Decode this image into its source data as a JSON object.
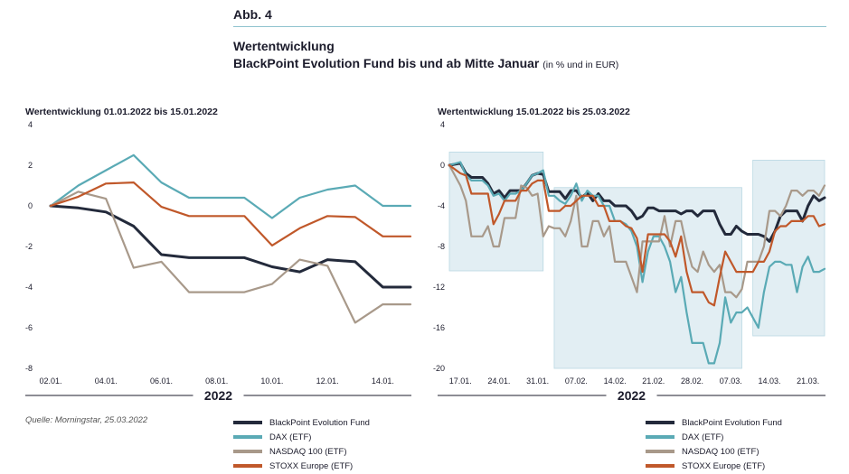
{
  "header": {
    "figure_label": "Abb. 4",
    "title": "Wertentwicklung",
    "subtitle": "BlackPoint Evolution Fund bis und ab Mitte Januar",
    "unit_note": "(in % und in EUR)"
  },
  "source": "Quelle: Morningstar, 25.03.2022",
  "legend_items": [
    {
      "label": "BlackPoint Evolution Fund",
      "color": "#232a3b"
    },
    {
      "label": "DAX (ETF)",
      "color": "#5aaab5"
    },
    {
      "label": "NASDAQ 100 (ETF)",
      "color": "#a8998a"
    },
    {
      "label": "STOXX Europe (ETF)",
      "color": "#c0582a"
    }
  ],
  "chart_data": [
    {
      "type": "line",
      "title": "Wertentwicklung 01.01.2022 bis 15.01.2022",
      "xlabel": "2022",
      "ylabel": "",
      "ylim": [
        -8,
        4
      ],
      "yticks": [
        4,
        2,
        0,
        -2,
        -4,
        -6,
        -8
      ],
      "xlim": [
        0,
        13
      ],
      "x": [
        0,
        1,
        2,
        3,
        4,
        5,
        6,
        7,
        8,
        9,
        10,
        11,
        12,
        13
      ],
      "xtick_positions": [
        0,
        2,
        4,
        6,
        8,
        10,
        12
      ],
      "xtick_labels": [
        "02.01.",
        "04.01.",
        "06.01.",
        "08.01.",
        "10.01.",
        "12.01.",
        "14.01."
      ],
      "series": [
        {
          "name": "BlackPoint Evolution Fund",
          "color": "#232a3b",
          "width": 3,
          "values": [
            0,
            -0.1,
            -0.3,
            -1.0,
            -2.4,
            -2.55,
            -2.55,
            -2.55,
            -3.0,
            -3.25,
            -2.65,
            -2.75,
            -4.0,
            -4.0
          ]
        },
        {
          "name": "DAX (ETF)",
          "color": "#5aaab5",
          "width": 2.2,
          "values": [
            0,
            1.0,
            1.75,
            2.5,
            1.15,
            0.4,
            0.4,
            0.4,
            -0.6,
            0.4,
            0.8,
            1.0,
            0,
            0
          ]
        },
        {
          "name": "NASDAQ 100 (ETF)",
          "color": "#a8998a",
          "width": 2.2,
          "values": [
            0,
            0.7,
            0.35,
            -3.05,
            -2.75,
            -4.25,
            -4.25,
            -4.25,
            -3.85,
            -2.65,
            -2.95,
            -5.75,
            -4.85,
            -4.85
          ]
        },
        {
          "name": "STOXX Europe (ETF)",
          "color": "#c0582a",
          "width": 2.2,
          "values": [
            0,
            0.45,
            1.1,
            1.15,
            -0.05,
            -0.5,
            -0.5,
            -0.5,
            -1.95,
            -1.1,
            -0.5,
            -0.55,
            -1.5,
            -1.5
          ]
        }
      ]
    },
    {
      "type": "line",
      "title": "Wertentwicklung 15.01.2022 bis 25.03.2022",
      "xlabel": "2022",
      "ylabel": "",
      "ylim": [
        -20,
        4
      ],
      "yticks": [
        4,
        0,
        -4,
        -8,
        -12,
        -16,
        -20
      ],
      "xlim": [
        0,
        68
      ],
      "xtick_positions": [
        2,
        9,
        16,
        23,
        30,
        37,
        44,
        51,
        58,
        65
      ],
      "xtick_labels": [
        "17.01.",
        "24.01.",
        "31.01.",
        "07.02.",
        "14.02.",
        "21.02.",
        "28.02.",
        "07.03.",
        "14.03.",
        "21.03."
      ],
      "shaded_ranges": [
        [
          0,
          17
        ],
        [
          19,
          53
        ],
        [
          55,
          68
        ]
      ],
      "series": [
        {
          "name": "BlackPoint Evolution Fund",
          "color": "#232a3b",
          "width": 3,
          "x": [
            0,
            2,
            3,
            4,
            6,
            7,
            8,
            9,
            10,
            11,
            12,
            13,
            14,
            15,
            16,
            17,
            18,
            19,
            20,
            21,
            22,
            23,
            24,
            25,
            26,
            27,
            28,
            29,
            30,
            31,
            32,
            33,
            34,
            35,
            36,
            37,
            38,
            39,
            40,
            41,
            42,
            43,
            44,
            45,
            46,
            47,
            48,
            49,
            50,
            51,
            52,
            53,
            54,
            55,
            56,
            57,
            58,
            59,
            60,
            61,
            62,
            63,
            64,
            65,
            66,
            67,
            68
          ],
          "values": [
            0,
            0.2,
            -0.8,
            -1.2,
            -1.2,
            -1.8,
            -2.8,
            -2.5,
            -3.2,
            -2.5,
            -2.5,
            -2.5,
            -1.8,
            -1.0,
            -0.8,
            -0.9,
            -2.6,
            -2.6,
            -2.6,
            -3.3,
            -2.5,
            -2.5,
            -3.2,
            -2.7,
            -3.5,
            -2.8,
            -3.5,
            -3.5,
            -4.0,
            -4.0,
            -4.0,
            -4.5,
            -5.3,
            -5.0,
            -4.2,
            -4.2,
            -4.5,
            -4.5,
            -4.5,
            -4.5,
            -4.8,
            -4.5,
            -4.5,
            -5.0,
            -4.5,
            -4.5,
            -4.5,
            -5.8,
            -6.8,
            -6.8,
            -6.0,
            -6.5,
            -6.8,
            -6.8,
            -6.8,
            -7.0,
            -7.5,
            -6.5,
            -5.0,
            -4.5,
            -4.5,
            -4.5,
            -5.5,
            -4.0,
            -3.0,
            -3.5,
            -3.2
          ]
        },
        {
          "name": "DAX (ETF)",
          "color": "#5aaab5",
          "width": 2.2,
          "x": [
            0,
            2,
            3,
            4,
            6,
            7,
            8,
            9,
            10,
            11,
            12,
            13,
            14,
            15,
            16,
            17,
            18,
            19,
            20,
            21,
            22,
            23,
            24,
            25,
            26,
            27,
            28,
            29,
            30,
            31,
            32,
            33,
            34,
            35,
            36,
            37,
            38,
            39,
            40,
            41,
            42,
            43,
            44,
            45,
            46,
            47,
            48,
            49,
            50,
            51,
            52,
            53,
            54,
            55,
            56,
            57,
            58,
            59,
            60,
            61,
            62,
            63,
            64,
            65,
            66,
            67,
            68
          ],
          "values": [
            0,
            0.3,
            -1.0,
            -1.5,
            -1.5,
            -2.0,
            -3.0,
            -2.8,
            -3.5,
            -2.8,
            -2.8,
            -2.5,
            -1.8,
            -1.0,
            -0.8,
            -0.5,
            -3.0,
            -3.0,
            -3.5,
            -3.8,
            -3.0,
            -1.8,
            -3.5,
            -2.5,
            -3.0,
            -3.0,
            -4.0,
            -4.0,
            -5.5,
            -5.5,
            -5.8,
            -6.5,
            -8.0,
            -11.5,
            -8.5,
            -7.0,
            -7.0,
            -8.0,
            -9.5,
            -12.5,
            -11.0,
            -14.5,
            -17.5,
            -17.5,
            -17.5,
            -19.5,
            -19.5,
            -17.5,
            -13.0,
            -15.5,
            -14.5,
            -14.5,
            -14.0,
            -15.0,
            -16.0,
            -12.5,
            -10.0,
            -9.5,
            -9.5,
            -9.8,
            -9.8,
            -12.5,
            -10.0,
            -9.0,
            -10.5,
            -10.5,
            -10.2
          ]
        },
        {
          "name": "NASDAQ 100 (ETF)",
          "color": "#a8998a",
          "width": 2.2,
          "x": [
            0,
            2,
            3,
            4,
            6,
            7,
            8,
            9,
            10,
            11,
            12,
            13,
            14,
            15,
            16,
            17,
            18,
            19,
            20,
            21,
            22,
            23,
            24,
            25,
            26,
            27,
            28,
            29,
            30,
            31,
            32,
            33,
            34,
            35,
            36,
            37,
            38,
            39,
            40,
            41,
            42,
            43,
            44,
            45,
            46,
            47,
            48,
            49,
            50,
            51,
            52,
            53,
            54,
            55,
            56,
            57,
            58,
            59,
            60,
            61,
            62,
            63,
            64,
            65,
            66,
            67,
            68
          ],
          "values": [
            0,
            -2.0,
            -3.5,
            -7.0,
            -7.0,
            -6.0,
            -8.0,
            -8.0,
            -5.2,
            -5.2,
            -5.2,
            -2.0,
            -2.2,
            -3.0,
            -2.8,
            -7.0,
            -6.0,
            -6.2,
            -6.2,
            -7.0,
            -5.5,
            -3.0,
            -8.0,
            -8.0,
            -5.5,
            -5.5,
            -7.0,
            -6.0,
            -9.5,
            -9.5,
            -9.5,
            -11.0,
            -12.5,
            -7.5,
            -7.5,
            -7.5,
            -7.5,
            -5.0,
            -8.0,
            -5.5,
            -5.5,
            -8.0,
            -10.0,
            -10.5,
            -8.5,
            -9.8,
            -10.5,
            -9.8,
            -12.5,
            -12.5,
            -13.0,
            -12.2,
            -9.5,
            -9.5,
            -9.5,
            -8.0,
            -4.5,
            -4.5,
            -5.0,
            -4.0,
            -2.5,
            -2.5,
            -3.0,
            -2.5,
            -2.5,
            -3.0,
            -2.0
          ]
        },
        {
          "name": "STOXX Europe (ETF)",
          "color": "#c0582a",
          "width": 2.2,
          "x": [
            0,
            2,
            3,
            4,
            6,
            7,
            8,
            9,
            10,
            11,
            12,
            13,
            14,
            15,
            16,
            17,
            18,
            19,
            20,
            21,
            22,
            23,
            24,
            25,
            26,
            27,
            28,
            29,
            30,
            31,
            32,
            33,
            34,
            35,
            36,
            37,
            38,
            39,
            40,
            41,
            42,
            43,
            44,
            45,
            46,
            47,
            48,
            49,
            50,
            51,
            52,
            53,
            54,
            55,
            56,
            57,
            58,
            59,
            60,
            61,
            62,
            63,
            64,
            65,
            66,
            67,
            68
          ],
          "values": [
            0,
            -0.8,
            -1.0,
            -2.8,
            -2.8,
            -2.8,
            -5.8,
            -4.8,
            -3.5,
            -3.5,
            -3.5,
            -2.5,
            -2.5,
            -1.8,
            -1.5,
            -1.5,
            -4.5,
            -4.5,
            -4.5,
            -4.0,
            -4.0,
            -3.5,
            -3.0,
            -3.0,
            -3.0,
            -4.0,
            -4.0,
            -5.5,
            -5.5,
            -5.5,
            -6.0,
            -6.2,
            -7.2,
            -10.5,
            -6.8,
            -6.8,
            -6.8,
            -6.8,
            -7.5,
            -9.0,
            -7.0,
            -10.5,
            -12.5,
            -12.5,
            -12.5,
            -13.5,
            -13.8,
            -11.0,
            -8.5,
            -9.5,
            -10.5,
            -10.5,
            -10.5,
            -10.5,
            -9.5,
            -9.5,
            -8.5,
            -6.5,
            -6.0,
            -6.0,
            -5.5,
            -5.5,
            -5.5,
            -5.0,
            -5.0,
            -6.0,
            -5.8
          ]
        }
      ]
    }
  ]
}
